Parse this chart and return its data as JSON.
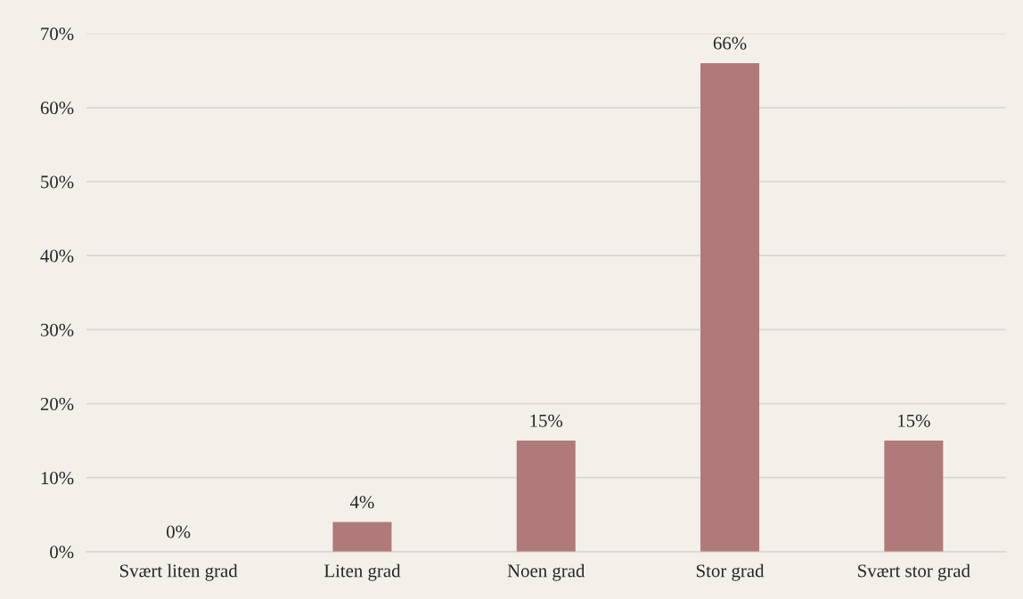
{
  "chart_data": {
    "type": "bar",
    "categories": [
      "Svært liten grad",
      "Liten grad",
      "Noen grad",
      "Stor grad",
      "Svært stor grad"
    ],
    "values": [
      0,
      4,
      15,
      66,
      15
    ],
    "value_labels": [
      "0%",
      "4%",
      "15%",
      "66%",
      "15%"
    ],
    "color": "#b07a7b",
    "ylim": [
      0,
      70
    ],
    "yticks": [
      {
        "value": 0,
        "label": "0%"
      },
      {
        "value": 10,
        "label": "10%"
      },
      {
        "value": 20,
        "label": "20%"
      },
      {
        "value": 30,
        "label": "30%"
      },
      {
        "value": 40,
        "label": "40%"
      },
      {
        "value": 50,
        "label": "50%"
      },
      {
        "value": 60,
        "label": "60%"
      },
      {
        "value": 70,
        "label": "70%"
      }
    ],
    "grid": "y",
    "legend": false
  }
}
